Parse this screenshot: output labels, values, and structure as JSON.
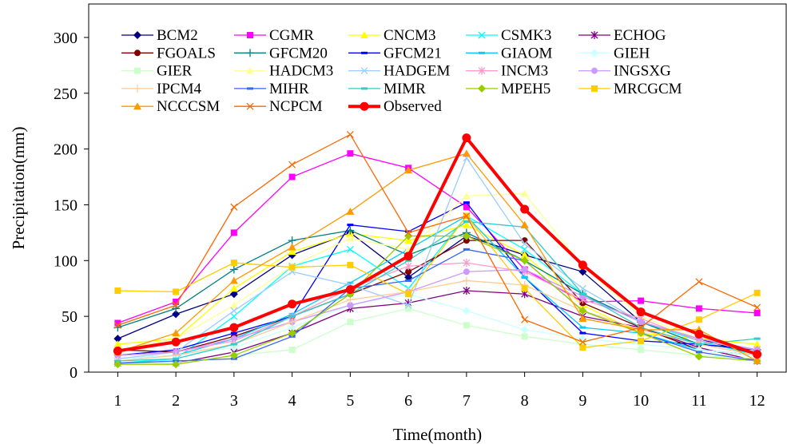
{
  "chart_data": {
    "type": "line",
    "title": "",
    "xlabel": "Time(month)",
    "ylabel": "Precipitation(mm)",
    "x": [
      1,
      2,
      3,
      4,
      5,
      6,
      7,
      8,
      9,
      10,
      11,
      12
    ],
    "xlim": [
      0.5,
      12.5
    ],
    "ylim": [
      0,
      330
    ],
    "yticks": [
      0,
      50,
      100,
      150,
      200,
      250,
      300
    ],
    "grid": false,
    "legend_position": "top (inside plot, 5 columns)",
    "series": [
      {
        "name": "BCM2",
        "color": "#000080",
        "marker": "diamond",
        "values": [
          30,
          52,
          70,
          105,
          125,
          85,
          122,
          105,
          90,
          45,
          30,
          15
        ]
      },
      {
        "name": "CGMR",
        "color": "#ff00ff",
        "marker": "square",
        "values": [
          44,
          63,
          125,
          175,
          196,
          183,
          148,
          92,
          63,
          64,
          57,
          53
        ]
      },
      {
        "name": "CNCM3",
        "color": "#ffff00",
        "marker": "triangle",
        "values": [
          25,
          30,
          75,
          108,
          124,
          118,
          132,
          105,
          60,
          35,
          30,
          25
        ]
      },
      {
        "name": "CSMK3",
        "color": "#00ffff",
        "marker": "x",
        "values": [
          8,
          12,
          50,
          95,
          110,
          75,
          140,
          110,
          70,
          45,
          28,
          15
        ]
      },
      {
        "name": "ECHOG",
        "color": "#800080",
        "marker": "star",
        "values": [
          8,
          8,
          18,
          35,
          57,
          62,
          73,
          70,
          50,
          40,
          22,
          10
        ]
      },
      {
        "name": "FGOALS",
        "color": "#800000",
        "marker": "circle",
        "values": [
          20,
          18,
          32,
          50,
          70,
          90,
          118,
          118,
          62,
          40,
          20,
          15
        ]
      },
      {
        "name": "GFCM20",
        "color": "#008080",
        "marker": "plus",
        "values": [
          40,
          57,
          92,
          118,
          127,
          105,
          125,
          100,
          70,
          45,
          25,
          20
        ]
      },
      {
        "name": "GFCM21",
        "color": "#0000ff",
        "marker": "dash",
        "values": [
          15,
          20,
          35,
          50,
          132,
          126,
          152,
          85,
          35,
          28,
          25,
          20
        ]
      },
      {
        "name": "GIAOM",
        "color": "#00ccff",
        "marker": "dash",
        "values": [
          12,
          15,
          30,
          52,
          80,
          110,
          140,
          85,
          40,
          35,
          20,
          15
        ]
      },
      {
        "name": "GIEH",
        "color": "#ccffff",
        "marker": "diamond",
        "values": [
          12,
          15,
          22,
          40,
          60,
          70,
          55,
          38,
          30,
          25,
          20,
          15
        ]
      },
      {
        "name": "GIER",
        "color": "#ccffcc",
        "marker": "square",
        "values": [
          8,
          8,
          15,
          20,
          45,
          57,
          42,
          32,
          25,
          20,
          15,
          12
        ]
      },
      {
        "name": "HADCM3",
        "color": "#ffff99",
        "marker": "triangle",
        "values": [
          20,
          30,
          60,
          95,
          120,
          110,
          158,
          160,
          95,
          50,
          30,
          20
        ]
      },
      {
        "name": "HADGEM",
        "color": "#99ccff",
        "marker": "x",
        "values": [
          12,
          18,
          55,
          90,
          78,
          60,
          192,
          115,
          75,
          45,
          30,
          20
        ]
      },
      {
        "name": "INCM3",
        "color": "#ff99cc",
        "marker": "star",
        "values": [
          15,
          18,
          28,
          50,
          75,
          95,
          98,
          90,
          65,
          48,
          28,
          20
        ]
      },
      {
        "name": "INGSXG",
        "color": "#cc99ff",
        "marker": "circle",
        "values": [
          15,
          18,
          30,
          45,
          60,
          72,
          90,
          92,
          68,
          45,
          30,
          20
        ]
      },
      {
        "name": "IPCM4",
        "color": "#ffcc99",
        "marker": "plus",
        "values": [
          10,
          15,
          25,
          45,
          65,
          72,
          82,
          78,
          55,
          38,
          25,
          15
        ]
      },
      {
        "name": "MIHR",
        "color": "#3366ff",
        "marker": "dash",
        "values": [
          8,
          10,
          12,
          32,
          75,
          82,
          110,
          100,
          55,
          35,
          18,
          10
        ]
      },
      {
        "name": "MIMR",
        "color": "#33cccc",
        "marker": "dash",
        "values": [
          10,
          12,
          25,
          50,
          70,
          100,
          135,
          130,
          70,
          40,
          25,
          30
        ]
      },
      {
        "name": "MPEH5",
        "color": "#99cc00",
        "marker": "diamond",
        "values": [
          7,
          7,
          15,
          35,
          70,
          122,
          122,
          100,
          55,
          35,
          14,
          10
        ]
      },
      {
        "name": "MRCGCM",
        "color": "#ffcc00",
        "marker": "square",
        "values": [
          73,
          72,
          98,
          94,
          96,
          70,
          140,
          75,
          22,
          28,
          47,
          71
        ]
      },
      {
        "name": "NCCCSM",
        "color": "#ff9900",
        "marker": "triangle",
        "values": [
          18,
          35,
          82,
          112,
          144,
          181,
          196,
          132,
          48,
          38,
          38,
          10
        ]
      },
      {
        "name": "NCPCM",
        "color": "#ff6600",
        "marker": "x",
        "values": [
          42,
          60,
          148,
          186,
          213,
          125,
          140,
          47,
          27,
          40,
          81,
          58
        ]
      },
      {
        "name": "Observed",
        "color": "#ff0000",
        "marker": "circle",
        "bold": true,
        "values": [
          19,
          27,
          40,
          61,
          74,
          104,
          210,
          146,
          96,
          54,
          34,
          16
        ]
      }
    ]
  }
}
